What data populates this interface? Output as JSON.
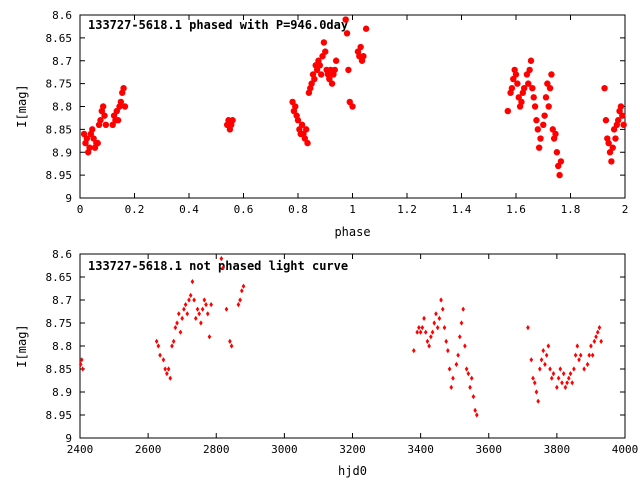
{
  "chart_data": [
    {
      "type": "scatter",
      "title": "133727-5618.1 phased with P=946.0day",
      "xlabel": "phase",
      "ylabel": "I[mag]",
      "xlim": [
        0,
        2
      ],
      "ylim": [
        9,
        8.6
      ],
      "y_inverted": true,
      "xticks": [
        "0",
        "0.2",
        "0.4",
        "0.6",
        "0.8",
        "1",
        "1.2",
        "1.4",
        "1.6",
        "1.8",
        "2"
      ],
      "yticks": [
        "8.6",
        "8.65",
        "8.7",
        "8.75",
        "8.8",
        "8.85",
        "8.9",
        "8.95",
        "9"
      ],
      "marker_color": "#ff0000",
      "marker": "filled-circle",
      "points": [
        [
          0.015,
          8.86
        ],
        [
          0.02,
          8.88
        ],
        [
          0.025,
          8.87
        ],
        [
          0.03,
          8.9
        ],
        [
          0.035,
          8.89
        ],
        [
          0.04,
          8.86
        ],
        [
          0.045,
          8.85
        ],
        [
          0.05,
          8.87
        ],
        [
          0.055,
          8.89
        ],
        [
          0.06,
          8.88
        ],
        [
          0.065,
          8.88
        ],
        [
          0.07,
          8.84
        ],
        [
          0.075,
          8.83
        ],
        [
          0.08,
          8.81
        ],
        [
          0.085,
          8.8
        ],
        [
          0.09,
          8.82
        ],
        [
          0.095,
          8.84
        ],
        [
          0.12,
          8.84
        ],
        [
          0.125,
          8.82
        ],
        [
          0.13,
          8.83
        ],
        [
          0.135,
          8.81
        ],
        [
          0.14,
          8.83
        ],
        [
          0.145,
          8.8
        ],
        [
          0.15,
          8.79
        ],
        [
          0.155,
          8.77
        ],
        [
          0.16,
          8.76
        ],
        [
          0.165,
          8.8
        ],
        [
          0.54,
          8.84
        ],
        [
          0.545,
          8.83
        ],
        [
          0.55,
          8.85
        ],
        [
          0.555,
          8.84
        ],
        [
          0.56,
          8.83
        ],
        [
          0.78,
          8.79
        ],
        [
          0.785,
          8.81
        ],
        [
          0.79,
          8.8
        ],
        [
          0.795,
          8.82
        ],
        [
          0.8,
          8.83
        ],
        [
          0.805,
          8.85
        ],
        [
          0.81,
          8.86
        ],
        [
          0.815,
          8.84
        ],
        [
          0.82,
          8.86
        ],
        [
          0.825,
          8.87
        ],
        [
          0.83,
          8.85
        ],
        [
          0.835,
          8.88
        ],
        [
          0.84,
          8.77
        ],
        [
          0.845,
          8.76
        ],
        [
          0.85,
          8.75
        ],
        [
          0.855,
          8.73
        ],
        [
          0.86,
          8.74
        ],
        [
          0.865,
          8.71
        ],
        [
          0.87,
          8.72
        ],
        [
          0.875,
          8.7
        ],
        [
          0.88,
          8.71
        ],
        [
          0.885,
          8.73
        ],
        [
          0.89,
          8.69
        ],
        [
          0.895,
          8.66
        ],
        [
          0.9,
          8.68
        ],
        [
          0.905,
          8.72
        ],
        [
          0.91,
          8.73
        ],
        [
          0.915,
          8.74
        ],
        [
          0.92,
          8.72
        ],
        [
          0.925,
          8.75
        ],
        [
          0.93,
          8.73
        ],
        [
          0.935,
          8.72
        ],
        [
          0.94,
          8.7
        ],
        [
          0.975,
          8.61
        ],
        [
          0.98,
          8.64
        ],
        [
          0.985,
          8.72
        ],
        [
          0.99,
          8.79
        ],
        [
          1.0,
          8.8
        ],
        [
          1.02,
          8.68
        ],
        [
          1.025,
          8.69
        ],
        [
          1.03,
          8.67
        ],
        [
          1.035,
          8.7
        ],
        [
          1.04,
          8.69
        ],
        [
          1.05,
          8.63
        ],
        [
          1.57,
          8.81
        ],
        [
          1.58,
          8.77
        ],
        [
          1.585,
          8.76
        ],
        [
          1.59,
          8.74
        ],
        [
          1.595,
          8.72
        ],
        [
          1.6,
          8.73
        ],
        [
          1.605,
          8.75
        ],
        [
          1.61,
          8.78
        ],
        [
          1.615,
          8.8
        ],
        [
          1.62,
          8.79
        ],
        [
          1.625,
          8.77
        ],
        [
          1.63,
          8.76
        ],
        [
          1.64,
          8.73
        ],
        [
          1.645,
          8.75
        ],
        [
          1.65,
          8.72
        ],
        [
          1.655,
          8.7
        ],
        [
          1.66,
          8.76
        ],
        [
          1.665,
          8.78
        ],
        [
          1.67,
          8.8
        ],
        [
          1.675,
          8.83
        ],
        [
          1.68,
          8.85
        ],
        [
          1.685,
          8.89
        ],
        [
          1.69,
          8.87
        ],
        [
          1.7,
          8.84
        ],
        [
          1.705,
          8.82
        ],
        [
          1.71,
          8.78
        ],
        [
          1.715,
          8.75
        ],
        [
          1.72,
          8.8
        ],
        [
          1.725,
          8.76
        ],
        [
          1.73,
          8.73
        ],
        [
          1.735,
          8.85
        ],
        [
          1.74,
          8.87
        ],
        [
          1.745,
          8.86
        ],
        [
          1.75,
          8.9
        ],
        [
          1.755,
          8.93
        ],
        [
          1.76,
          8.95
        ],
        [
          1.765,
          8.92
        ],
        [
          1.925,
          8.76
        ],
        [
          1.93,
          8.83
        ],
        [
          1.935,
          8.87
        ],
        [
          1.94,
          8.88
        ],
        [
          1.945,
          8.9
        ],
        [
          1.95,
          8.92
        ],
        [
          1.955,
          8.89
        ],
        [
          1.96,
          8.85
        ],
        [
          1.965,
          8.87
        ],
        [
          1.97,
          8.84
        ],
        [
          1.975,
          8.83
        ],
        [
          1.98,
          8.81
        ],
        [
          1.985,
          8.8
        ],
        [
          1.99,
          8.82
        ],
        [
          1.995,
          8.84
        ]
      ]
    },
    {
      "type": "scatter",
      "title": "133727-5618.1 not phased light curve",
      "xlabel": "hjd0",
      "ylabel": "I[mag]",
      "xlim": [
        2400,
        4000
      ],
      "ylim": [
        9,
        8.6
      ],
      "y_inverted": true,
      "xticks": [
        "2400",
        "2600",
        "2800",
        "3000",
        "3200",
        "3400",
        "3600",
        "3800",
        "4000"
      ],
      "yticks": [
        "8.6",
        "8.65",
        "8.7",
        "8.75",
        "8.8",
        "8.85",
        "8.9",
        "8.95",
        "9"
      ],
      "marker_color": "#ff0000",
      "marker": "diamond",
      "points": [
        [
          2402,
          8.84
        ],
        [
          2405,
          8.83
        ],
        [
          2408,
          8.85
        ],
        [
          2625,
          8.79
        ],
        [
          2630,
          8.8
        ],
        [
          2635,
          8.82
        ],
        [
          2645,
          8.83
        ],
        [
          2650,
          8.85
        ],
        [
          2655,
          8.86
        ],
        [
          2660,
          8.85
        ],
        [
          2665,
          8.87
        ],
        [
          2670,
          8.8
        ],
        [
          2675,
          8.79
        ],
        [
          2680,
          8.76
        ],
        [
          2685,
          8.75
        ],
        [
          2690,
          8.73
        ],
        [
          2695,
          8.77
        ],
        [
          2700,
          8.74
        ],
        [
          2705,
          8.72
        ],
        [
          2710,
          8.71
        ],
        [
          2715,
          8.73
        ],
        [
          2720,
          8.7
        ],
        [
          2725,
          8.69
        ],
        [
          2730,
          8.66
        ],
        [
          2735,
          8.7
        ],
        [
          2740,
          8.74
        ],
        [
          2745,
          8.72
        ],
        [
          2750,
          8.73
        ],
        [
          2755,
          8.75
        ],
        [
          2760,
          8.72
        ],
        [
          2765,
          8.7
        ],
        [
          2770,
          8.71
        ],
        [
          2775,
          8.73
        ],
        [
          2780,
          8.78
        ],
        [
          2785,
          8.71
        ],
        [
          2815,
          8.61
        ],
        [
          2820,
          8.63
        ],
        [
          2830,
          8.72
        ],
        [
          2840,
          8.79
        ],
        [
          2845,
          8.8
        ],
        [
          2865,
          8.71
        ],
        [
          2870,
          8.7
        ],
        [
          2875,
          8.68
        ],
        [
          2880,
          8.67
        ],
        [
          3380,
          8.81
        ],
        [
          3390,
          8.77
        ],
        [
          3395,
          8.76
        ],
        [
          3400,
          8.77
        ],
        [
          3405,
          8.76
        ],
        [
          3410,
          8.74
        ],
        [
          3415,
          8.77
        ],
        [
          3420,
          8.79
        ],
        [
          3425,
          8.8
        ],
        [
          3430,
          8.78
        ],
        [
          3435,
          8.77
        ],
        [
          3440,
          8.75
        ],
        [
          3445,
          8.73
        ],
        [
          3450,
          8.76
        ],
        [
          3455,
          8.74
        ],
        [
          3460,
          8.7
        ],
        [
          3465,
          8.72
        ],
        [
          3470,
          8.76
        ],
        [
          3475,
          8.79
        ],
        [
          3480,
          8.81
        ],
        [
          3485,
          8.85
        ],
        [
          3490,
          8.89
        ],
        [
          3495,
          8.87
        ],
        [
          3505,
          8.84
        ],
        [
          3510,
          8.82
        ],
        [
          3515,
          8.78
        ],
        [
          3520,
          8.75
        ],
        [
          3525,
          8.72
        ],
        [
          3530,
          8.8
        ],
        [
          3535,
          8.85
        ],
        [
          3540,
          8.86
        ],
        [
          3545,
          8.89
        ],
        [
          3550,
          8.87
        ],
        [
          3555,
          8.91
        ],
        [
          3560,
          8.94
        ],
        [
          3565,
          8.95
        ],
        [
          3715,
          8.76
        ],
        [
          3725,
          8.83
        ],
        [
          3730,
          8.87
        ],
        [
          3735,
          8.88
        ],
        [
          3740,
          8.9
        ],
        [
          3745,
          8.92
        ],
        [
          3750,
          8.85
        ],
        [
          3755,
          8.83
        ],
        [
          3760,
          8.81
        ],
        [
          3765,
          8.84
        ],
        [
          3770,
          8.82
        ],
        [
          3775,
          8.8
        ],
        [
          3780,
          8.85
        ],
        [
          3785,
          8.87
        ],
        [
          3790,
          8.86
        ],
        [
          3800,
          8.89
        ],
        [
          3805,
          8.87
        ],
        [
          3810,
          8.85
        ],
        [
          3815,
          8.88
        ],
        [
          3820,
          8.86
        ],
        [
          3825,
          8.89
        ],
        [
          3830,
          8.88
        ],
        [
          3835,
          8.87
        ],
        [
          3840,
          8.86
        ],
        [
          3845,
          8.88
        ],
        [
          3850,
          8.85
        ],
        [
          3855,
          8.82
        ],
        [
          3860,
          8.8
        ],
        [
          3865,
          8.83
        ],
        [
          3870,
          8.82
        ],
        [
          3880,
          8.85
        ],
        [
          3890,
          8.84
        ],
        [
          3895,
          8.82
        ],
        [
          3900,
          8.8
        ],
        [
          3905,
          8.82
        ],
        [
          3910,
          8.79
        ],
        [
          3915,
          8.78
        ],
        [
          3920,
          8.77
        ],
        [
          3925,
          8.76
        ],
        [
          3930,
          8.79
        ]
      ]
    }
  ]
}
